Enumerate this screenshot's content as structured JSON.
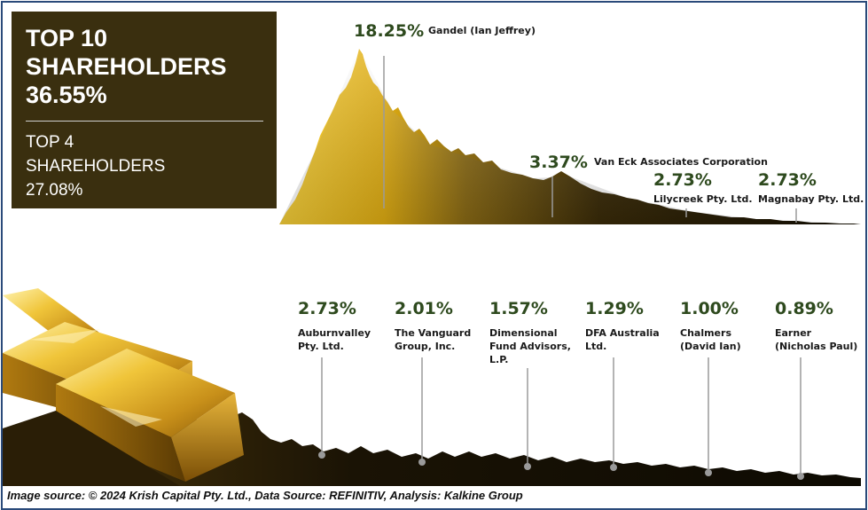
{
  "summary": {
    "title_line1": "TOP 10",
    "title_line2": "SHAREHOLDERS",
    "title_line3": "36.55%",
    "sub_line1": "TOP 4",
    "sub_line2": "SHAREHOLDERS",
    "sub_line3": "27.08%"
  },
  "colors": {
    "summary_bg": "#3a2f0f",
    "percent_text": "#2e4a1e",
    "gold": "#e0b020",
    "mountain_dark": "#1e1606",
    "border": "#2a4a7a"
  },
  "chart_data": {
    "type": "bar",
    "title": "TOP 10 SHAREHOLDERS 36.55%",
    "subtitle": "TOP 4 SHAREHOLDERS 27.08%",
    "unit": "%",
    "categories": [
      [
        "Gandel (Ian Jeffrey)"
      ],
      [
        "Van Eck Associates Corporation"
      ],
      [
        "Lilycreek Pty. Ltd."
      ],
      [
        "Magnabay Pty. Ltd."
      ],
      [
        "Auburnvalley",
        "Pty. Ltd."
      ],
      [
        "The Vanguard",
        "Group, Inc."
      ],
      [
        "Dimensional",
        "Fund Advisors,",
        "L.P."
      ],
      [
        "DFA Australia",
        "Ltd."
      ],
      [
        "Chalmers",
        "(David Ian)"
      ],
      [
        "Earner",
        "(Nicholas Paul)"
      ]
    ],
    "values": [
      18.25,
      3.37,
      2.73,
      2.73,
      2.73,
      2.01,
      1.57,
      1.29,
      1.0,
      0.89
    ],
    "value_labels": [
      "18.25%",
      "3.37%",
      "2.73%",
      "2.73%",
      "2.73%",
      "2.01%",
      "1.57%",
      "1.29%",
      "1.00%",
      "0.89%"
    ],
    "top4_total": "27.08%",
    "top10_total": "36.55%"
  },
  "footer": "Image source: © 2024 Krish Capital Pty. Ltd., Data Source: REFINITIV, Analysis: Kalkine Group"
}
